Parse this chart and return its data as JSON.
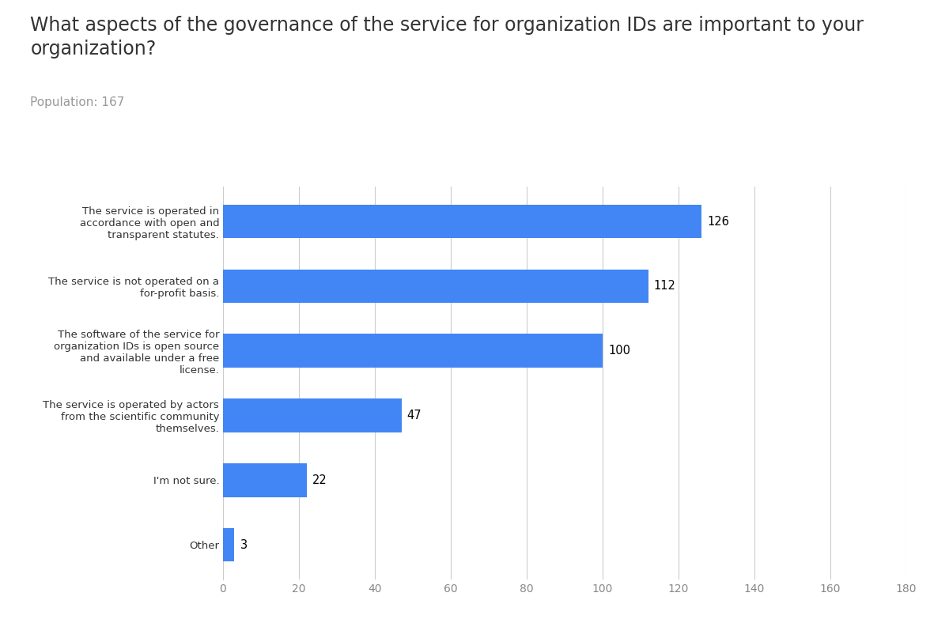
{
  "title": "What aspects of the governance of the service for organization IDs are important to your\norganization?",
  "subtitle": "Population: 167",
  "categories": [
    "Other",
    "I'm not sure.",
    "The service is operated by actors\nfrom the scientific community\nthemselves.",
    "The software of the service for\norganization IDs is open source\nand available under a free\nlicense.",
    "The service is not operated on a\nfor-profit basis.",
    "The service is operated in\naccordance with open and\ntransparent statutes."
  ],
  "values": [
    3,
    22,
    47,
    100,
    112,
    126
  ],
  "bar_color": "#4285f4",
  "background_color": "#ffffff",
  "xlim": [
    0,
    180
  ],
  "xticks": [
    0,
    20,
    40,
    60,
    80,
    100,
    120,
    140,
    160,
    180
  ],
  "title_fontsize": 17,
  "subtitle_fontsize": 11,
  "label_fontsize": 9.5,
  "value_fontsize": 10.5,
  "tick_fontsize": 10,
  "grid_color": "#cccccc",
  "title_color": "#333333",
  "subtitle_color": "#999999",
  "label_color": "#333333",
  "tick_color": "#888888"
}
